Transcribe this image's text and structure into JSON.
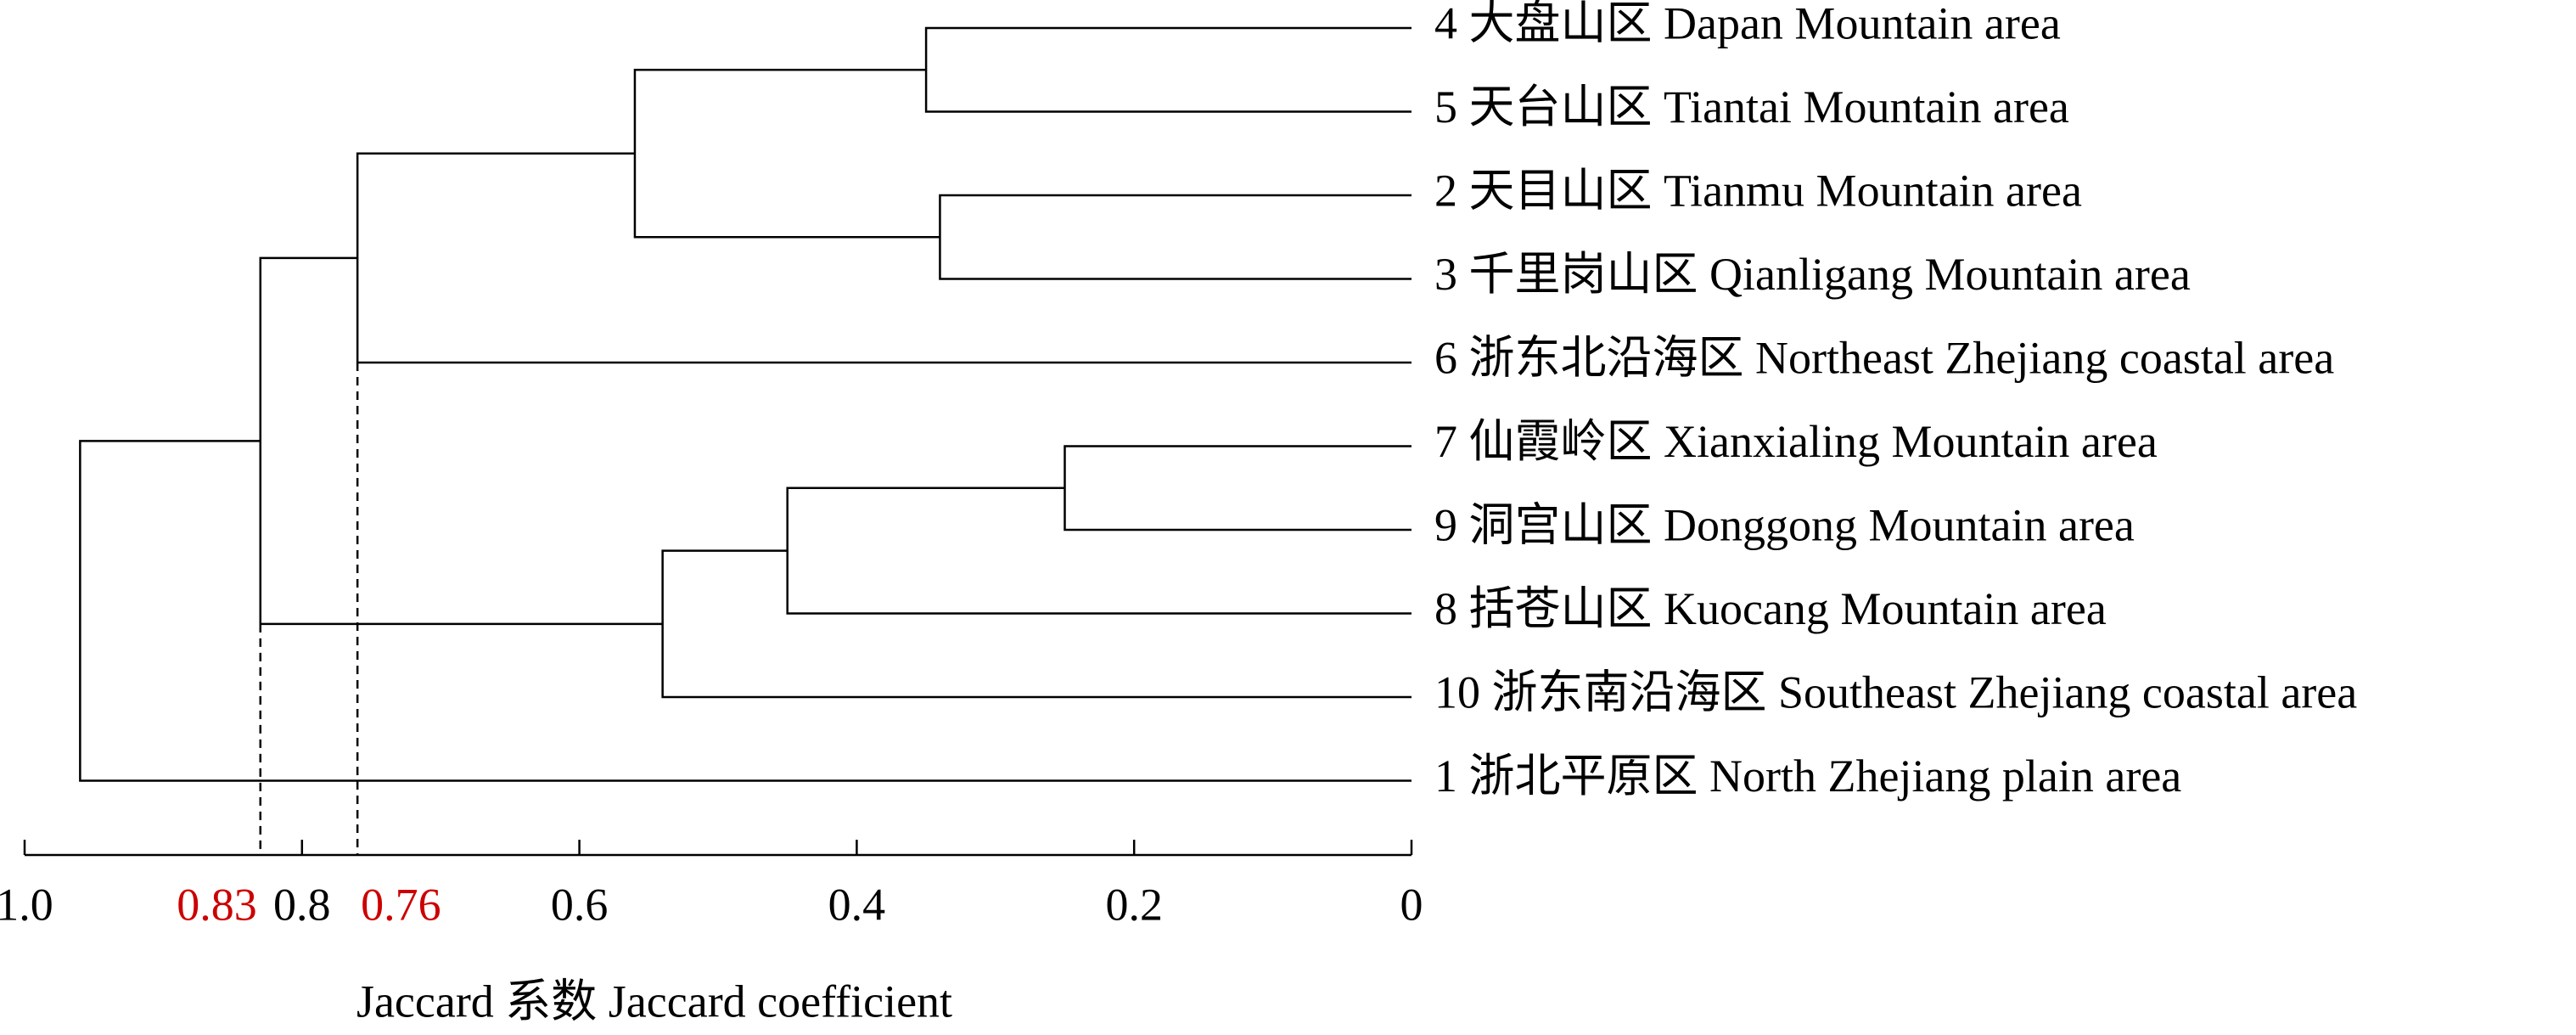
{
  "chart_data": {
    "type": "dendrogram",
    "xlabel": "Jaccard 系数 Jaccard coefficient",
    "leaves": [
      "4 大盘山区 Dapan Mountain area",
      "5 天台山区 Tiantai Mountain area",
      "2 天目山区 Tianmu Mountain area",
      "3 千里岗山区 Qianligang Mountain area",
      "6 浙东北沿海区 Northeast Zhejiang coastal area",
      "7 仙霞岭区 Xianxialing Mountain area",
      "9 洞宫山区 Donggong Mountain area",
      "8 括苍山区 Kuocang Mountain area",
      "10 浙东南沿海区 Southeast Zhejiang coastal area",
      "1 浙北平原区 North Zhejiang plain area"
    ],
    "merges": [
      {
        "left": 0,
        "right": 1,
        "height": 0.35
      },
      {
        "left": 2,
        "right": 3,
        "height": 0.34
      },
      {
        "left": 10,
        "right": 11,
        "height": 0.56
      },
      {
        "left": 12,
        "right": 4,
        "height": 0.76
      },
      {
        "left": 5,
        "right": 6,
        "height": 0.25
      },
      {
        "left": 14,
        "right": 7,
        "height": 0.45
      },
      {
        "left": 15,
        "right": 8,
        "height": 0.54
      },
      {
        "left": 13,
        "right": 16,
        "height": 0.83
      },
      {
        "left": 17,
        "right": 9,
        "height": 0.96
      }
    ],
    "xlim": [
      1,
      0
    ],
    "xticks": [
      {
        "value": 1,
        "label": "1.0"
      },
      0.8,
      0.6,
      0.4,
      0.2,
      0
    ],
    "cut_lines": [
      0.83,
      0.76
    ],
    "cut_color": "#cc0000"
  }
}
